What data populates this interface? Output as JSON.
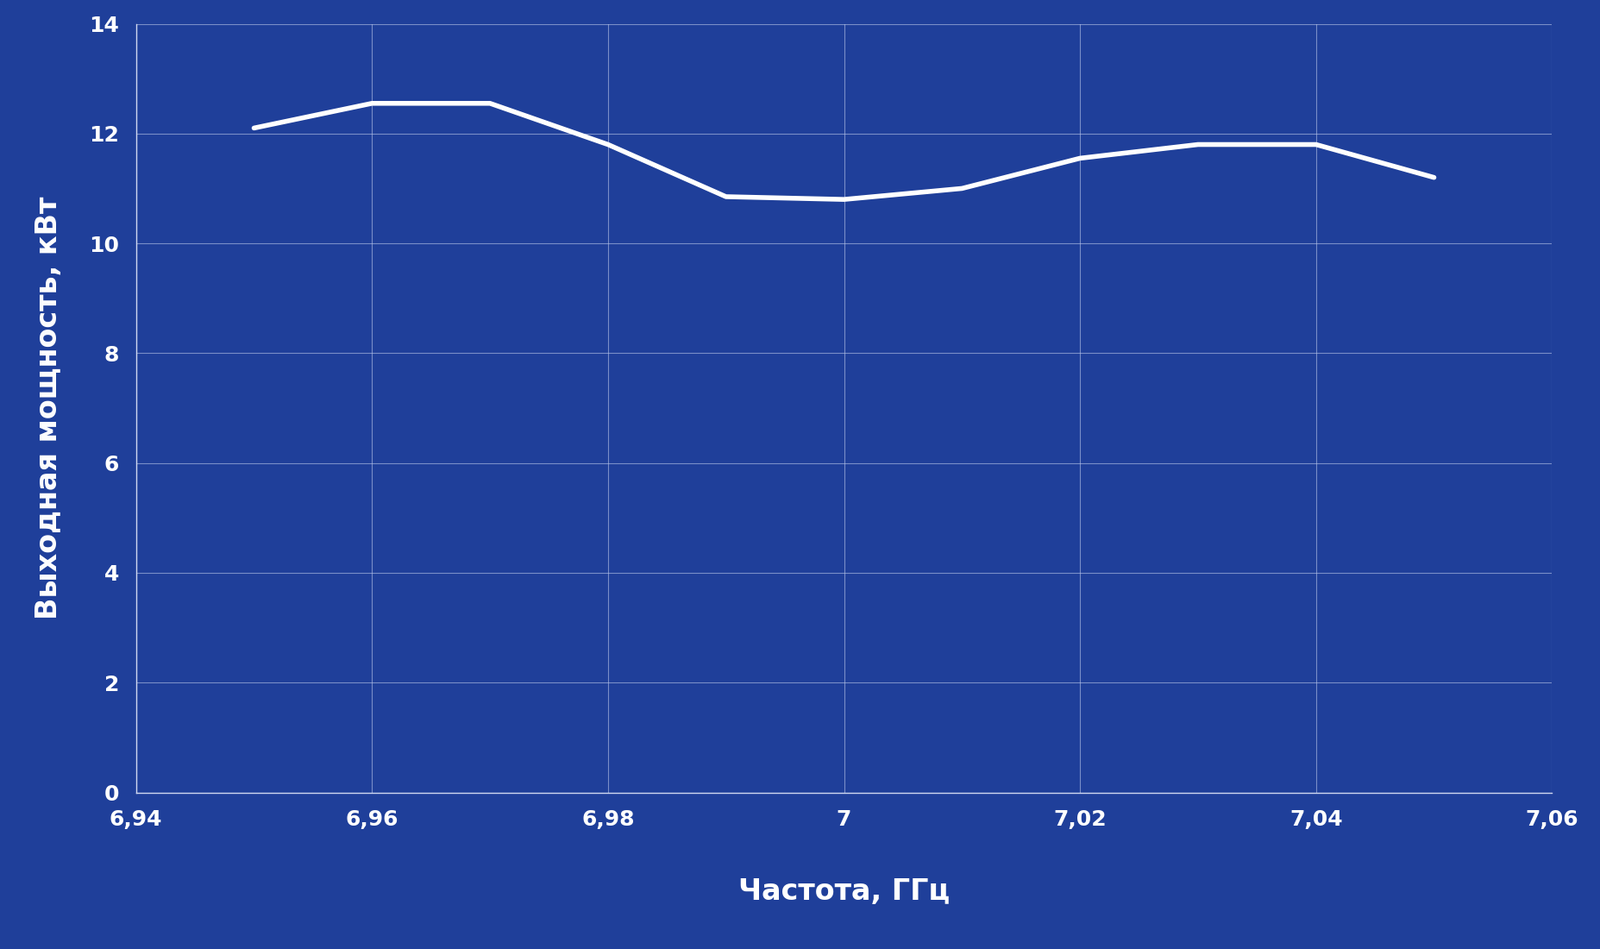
{
  "chart_data": {
    "type": "line",
    "x_label": "Частота, ГГц",
    "y_label": "Выходная мощность, кВт",
    "x": [
      6.95,
      6.96,
      6.97,
      6.98,
      6.99,
      7.0,
      7.01,
      7.02,
      7.03,
      7.04,
      7.05
    ],
    "values": [
      12.1,
      12.55,
      12.55,
      11.8,
      10.85,
      10.8,
      11.0,
      11.55,
      11.8,
      11.8,
      11.2
    ],
    "color": "#ffffff",
    "xlim": [
      6.94,
      7.06
    ],
    "xticks": [
      {
        "value": 6.94,
        "label": "6,94"
      },
      {
        "value": 6.96,
        "label": "6,96"
      },
      {
        "value": 6.98,
        "label": "6,98"
      },
      7,
      {
        "value": 7.02,
        "label": "7,02"
      },
      {
        "value": 7.04,
        "label": "7,04"
      },
      {
        "value": 7.06,
        "label": "7,06"
      }
    ],
    "ylim": [
      0,
      14
    ],
    "yticks": [
      0,
      2,
      4,
      6,
      8,
      10,
      12,
      14
    ],
    "grid": true
  }
}
